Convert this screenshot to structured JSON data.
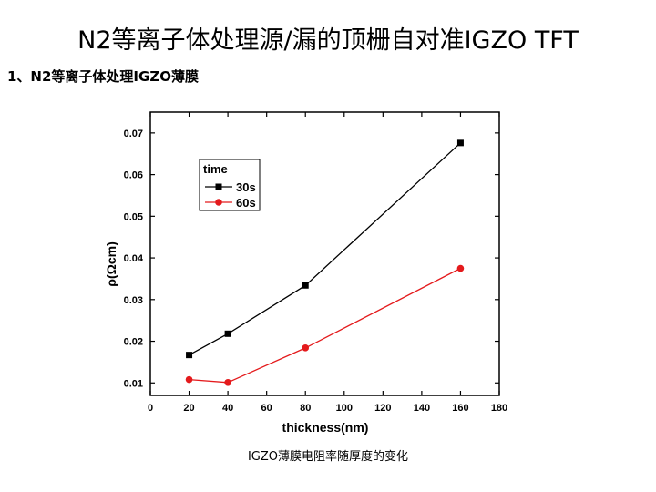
{
  "slide": {
    "title": "N2等离子体处理源/漏的顶栅自对准IGZO TFT",
    "section_heading": "1、N2等离子体处理IGZO薄膜",
    "caption": "IGZO薄膜电阻率随厚度的变化"
  },
  "chart_data": {
    "type": "line",
    "title": "",
    "xlabel": "thickness(nm)",
    "ylabel": "ρ(Ωcm)",
    "xlim": [
      0,
      180
    ],
    "ylim": [
      0.007,
      0.075
    ],
    "xticks": [
      0,
      20,
      40,
      60,
      80,
      100,
      120,
      140,
      160,
      180
    ],
    "yticks": [
      0.01,
      0.02,
      0.03,
      0.04,
      0.05,
      0.06,
      0.07
    ],
    "legend_title": "time",
    "legend_position": "top-left",
    "series": [
      {
        "name": "30s",
        "color": "#000000",
        "marker": "square",
        "x": [
          20,
          40,
          80,
          160
        ],
        "y": [
          0.0167,
          0.0218,
          0.0334,
          0.0676
        ]
      },
      {
        "name": "60s",
        "color": "#e41a1c",
        "marker": "circle",
        "x": [
          20,
          40,
          80,
          160
        ],
        "y": [
          0.0108,
          0.0101,
          0.0184,
          0.0375
        ]
      }
    ]
  }
}
